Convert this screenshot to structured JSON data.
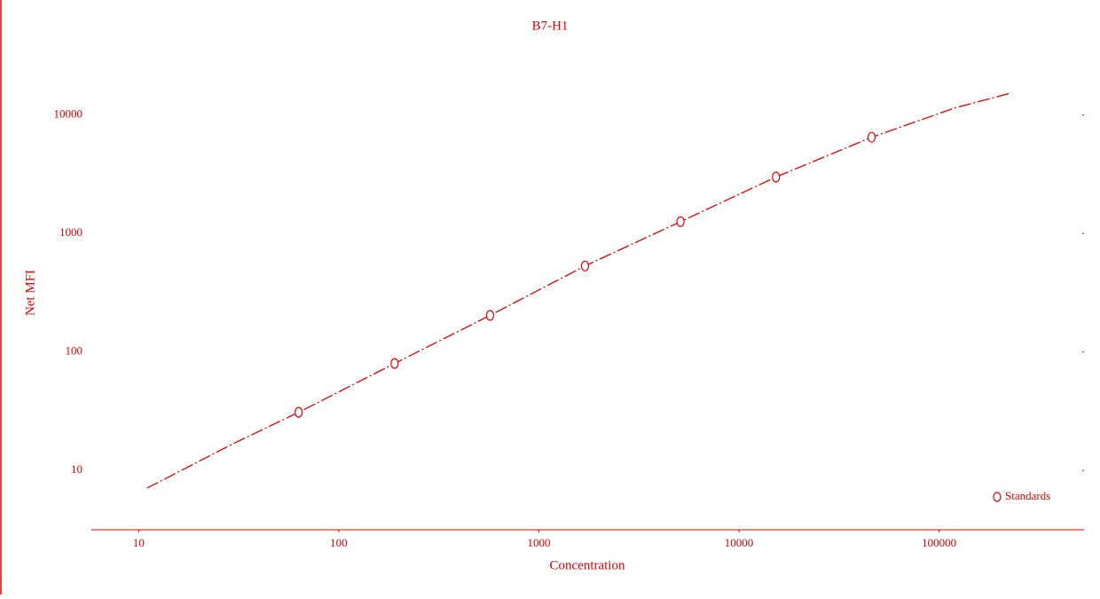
{
  "chart_data": {
    "type": "scatter",
    "title": "B7-H1",
    "xlabel": "Concentration",
    "ylabel": "Net MFI",
    "xscale": "log",
    "yscale": "log",
    "xlim": [
      5.8,
      530000
    ],
    "ylim": [
      3,
      30000
    ],
    "xticks": [
      10,
      100,
      1000,
      10000,
      100000
    ],
    "yticks": [
      10,
      100,
      1000,
      10000
    ],
    "color": "#e00000",
    "legend": "lower right",
    "series": [
      {
        "name": "Standards",
        "color": "#e00000",
        "x": [
          63,
          190,
          570,
          1700,
          5100,
          15300,
          46000
        ],
        "values": [
          31,
          80,
          204,
          533,
          1260,
          3000,
          6500
        ]
      }
    ],
    "fit": {
      "x": [
        11,
        30,
        63,
        190,
        570,
        1700,
        5100,
        15300,
        46000,
        120000,
        230000
      ],
      "values": [
        7.1,
        17,
        31,
        80,
        204,
        533,
        1260,
        3000,
        6500,
        11500,
        15400
      ]
    }
  }
}
